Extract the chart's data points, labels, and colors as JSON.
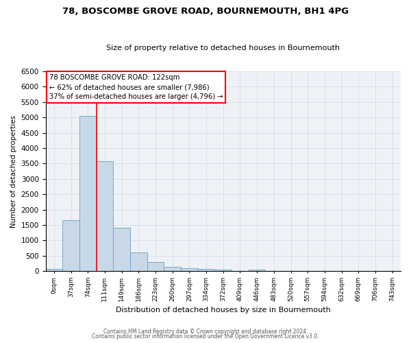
{
  "title": "78, BOSCOMBE GROVE ROAD, BOURNEMOUTH, BH1 4PG",
  "subtitle": "Size of property relative to detached houses in Bournemouth",
  "xlabel": "Distribution of detached houses by size in Bournemouth",
  "ylabel": "Number of detached properties",
  "bin_labels": [
    "0sqm",
    "37sqm",
    "74sqm",
    "111sqm",
    "149sqm",
    "186sqm",
    "223sqm",
    "260sqm",
    "297sqm",
    "334sqm",
    "372sqm",
    "409sqm",
    "446sqm",
    "483sqm",
    "520sqm",
    "557sqm",
    "594sqm",
    "632sqm",
    "669sqm",
    "706sqm",
    "743sqm"
  ],
  "bin_values": [
    70,
    1650,
    5060,
    3580,
    1420,
    610,
    300,
    145,
    100,
    60,
    50,
    0,
    40,
    0,
    0,
    0,
    0,
    0,
    0,
    0,
    0
  ],
  "bar_color": "#c8d8e8",
  "bar_edge_color": "#6a9fc0",
  "vline_x": 2.5,
  "vline_color": "red",
  "annotation_title": "78 BOSCOMBE GROVE ROAD: 122sqm",
  "annotation_line1": "← 62% of detached houses are smaller (7,986)",
  "annotation_line2": "37% of semi-detached houses are larger (4,796) →",
  "annotation_box_color": "red",
  "ylim": [
    0,
    6500
  ],
  "yticks": [
    0,
    500,
    1000,
    1500,
    2000,
    2500,
    3000,
    3500,
    4000,
    4500,
    5000,
    5500,
    6000,
    6500
  ],
  "footnote1": "Contains HM Land Registry data © Crown copyright and database right 2024.",
  "footnote2": "Contains public sector information licensed under the Open Government Licence v3.0.",
  "background_color": "#eef2f7",
  "grid_color": "#d0d8e4"
}
